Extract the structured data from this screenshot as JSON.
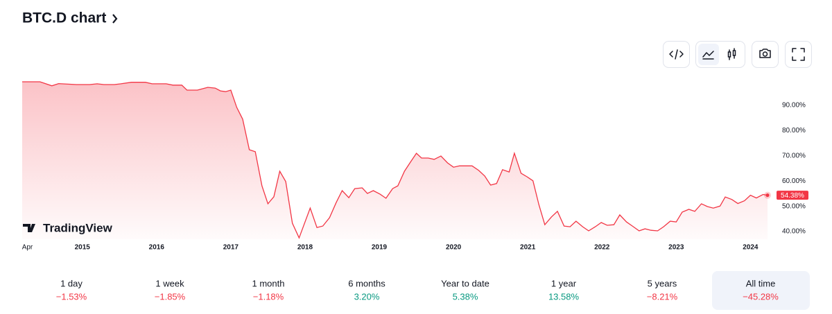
{
  "chart_data": {
    "type": "area",
    "title": "BTC.D chart",
    "color": "#f23645",
    "x": [
      2014.19,
      2014.43,
      2014.59,
      2014.68,
      2014.92,
      2015.1,
      2015.2,
      2015.29,
      2015.43,
      2015.52,
      2015.66,
      2015.85,
      2015.94,
      2016.13,
      2016.22,
      2016.34,
      2016.41,
      2016.55,
      2016.69,
      2016.79,
      2016.86,
      2016.93,
      2017.0,
      2017.08,
      2017.16,
      2017.25,
      2017.33,
      2017.42,
      2017.5,
      2017.58,
      2017.66,
      2017.74,
      2017.83,
      2017.92,
      2018.07,
      2018.16,
      2018.24,
      2018.33,
      2018.42,
      2018.5,
      2018.59,
      2018.67,
      2018.77,
      2018.84,
      2018.92,
      2019.01,
      2019.09,
      2019.18,
      2019.25,
      2019.34,
      2019.42,
      2019.5,
      2019.57,
      2019.66,
      2019.74,
      2019.83,
      2019.92,
      2020.0,
      2020.08,
      2020.17,
      2020.25,
      2020.34,
      2020.42,
      2020.5,
      2020.58,
      2020.66,
      2020.75,
      2020.82,
      2020.91,
      2020.99,
      2021.07,
      2021.15,
      2021.23,
      2021.32,
      2021.4,
      2021.49,
      2021.57,
      2021.65,
      2021.74,
      2021.82,
      2021.91,
      2021.99,
      2022.07,
      2022.16,
      2022.24,
      2022.33,
      2022.41,
      2022.5,
      2022.58,
      2022.66,
      2022.75,
      2022.83,
      2022.92,
      2023.0,
      2023.08,
      2023.17,
      2023.25,
      2023.34,
      2023.42,
      2023.5,
      2023.59,
      2023.66,
      2023.75,
      2023.83,
      2023.92,
      2024.0,
      2024.08,
      2024.17,
      2024.23
    ],
    "values": [
      99.3,
      99.3,
      97.7,
      98.6,
      98.2,
      98.2,
      98.5,
      98.2,
      98.2,
      98.5,
      99.1,
      99.1,
      98.5,
      98.5,
      98.0,
      98.0,
      96.0,
      96.0,
      97.1,
      96.8,
      95.7,
      95.4,
      96.0,
      89.2,
      84.5,
      72.4,
      71.6,
      58.1,
      51.0,
      53.8,
      63.9,
      59.8,
      43.3,
      37.5,
      49.3,
      41.6,
      42.2,
      45.5,
      51.5,
      56.2,
      53.4,
      57.0,
      57.3,
      55.1,
      56.2,
      54.8,
      53.2,
      57.0,
      58.1,
      63.9,
      67.5,
      71.0,
      69.1,
      69.1,
      68.6,
      69.9,
      67.2,
      65.5,
      66.0,
      66.0,
      66.0,
      64.2,
      62.0,
      58.4,
      59.0,
      64.5,
      63.6,
      71.0,
      63.1,
      61.7,
      60.1,
      50.7,
      42.7,
      45.8,
      48.0,
      42.2,
      41.9,
      44.1,
      41.9,
      40.3,
      41.9,
      43.6,
      42.5,
      42.7,
      46.6,
      43.8,
      42.2,
      40.3,
      41.1,
      40.5,
      40.3,
      41.9,
      44.1,
      43.8,
      47.7,
      48.8,
      48.0,
      51.0,
      49.9,
      49.3,
      50.1,
      53.7,
      52.7,
      51.1,
      52.2,
      54.4,
      53.3,
      54.7,
      54.38
    ],
    "last_value_label": "54.38%",
    "xlim": [
      2014.19,
      2024.23
    ],
    "xticks": [
      {
        "value": 2014.26,
        "label": "Apr"
      },
      2015,
      2016,
      2017,
      2018,
      2019,
      2020,
      2021,
      2022,
      2023,
      2024
    ],
    "ylim": [
      37,
      101.5
    ],
    "yticks": [
      {
        "value": 40,
        "label": "40.00%"
      },
      {
        "value": 50,
        "label": "50.00%"
      },
      {
        "value": 60,
        "label": "60.00%"
      },
      {
        "value": 70,
        "label": "70.00%"
      },
      {
        "value": 80,
        "label": "80.00%"
      },
      {
        "value": 90,
        "label": "90.00%"
      }
    ],
    "watermark": "TradingView"
  },
  "periods": [
    {
      "label": "1 day",
      "change": "−1.53%",
      "color": "#f23645"
    },
    {
      "label": "1 week",
      "change": "−1.85%",
      "color": "#f23645"
    },
    {
      "label": "1 month",
      "change": "−1.18%",
      "color": "#f23645"
    },
    {
      "label": "6 months",
      "change": "3.20%",
      "color": "#089981"
    },
    {
      "label": "Year to date",
      "change": "5.38%",
      "color": "#089981"
    },
    {
      "label": "1 year",
      "change": "13.58%",
      "color": "#089981"
    },
    {
      "label": "5 years",
      "change": "−8.21%",
      "color": "#f23645"
    },
    {
      "label": "All time",
      "change": "−45.28%",
      "color": "#f23645",
      "active": true
    }
  ]
}
